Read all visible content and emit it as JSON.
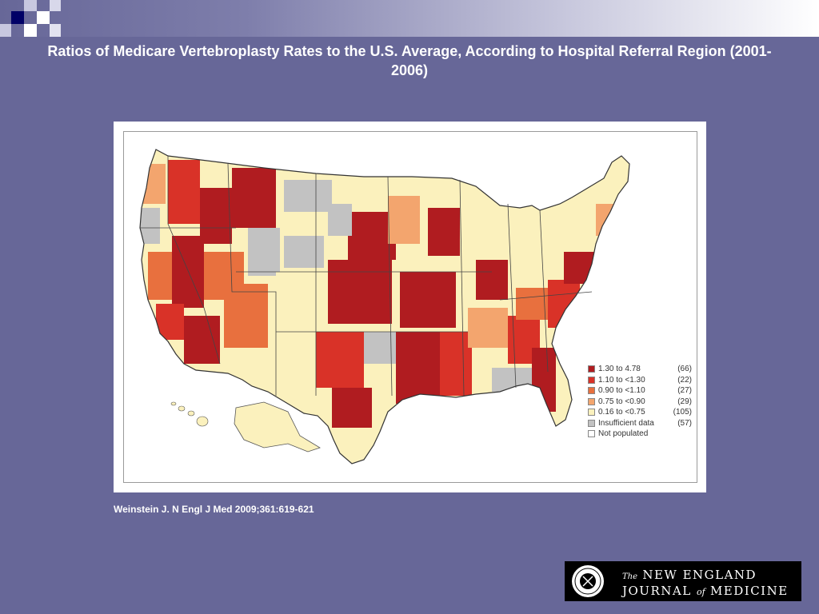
{
  "slide": {
    "title": "Ratios of Medicare Vertebroplasty Rates to the U.S. Average, According to Hospital Referral Region (2001-2006)",
    "citation": "Weinstein J. N Engl J Med 2009;361:619-621"
  },
  "map": {
    "legend": [
      {
        "label": "1.30 to  4.78",
        "count": "(66)",
        "color": "#b01c20"
      },
      {
        "label": "1.10 to <1.30",
        "count": "(22)",
        "color": "#d93228"
      },
      {
        "label": "0.90 to <1.10",
        "count": "(27)",
        "color": "#e8703e"
      },
      {
        "label": "0.75 to <0.90",
        "count": "(29)",
        "color": "#f3a56e"
      },
      {
        "label": "0.16 to <0.75",
        "count": "(105)",
        "color": "#fbf1bd"
      },
      {
        "label": "Insufficient data",
        "count": "(57)",
        "color": "#c2c2c2"
      },
      {
        "label": "Not populated",
        "count": "",
        "color": "#ffffff"
      }
    ]
  },
  "logo": {
    "the": "The",
    "line1": "NEW ENGLAND",
    "journal": "JOURNAL",
    "of": "of",
    "medicine": "MEDICINE"
  },
  "colors": {
    "background": "#676798",
    "top_bar_dark": "#000066"
  }
}
